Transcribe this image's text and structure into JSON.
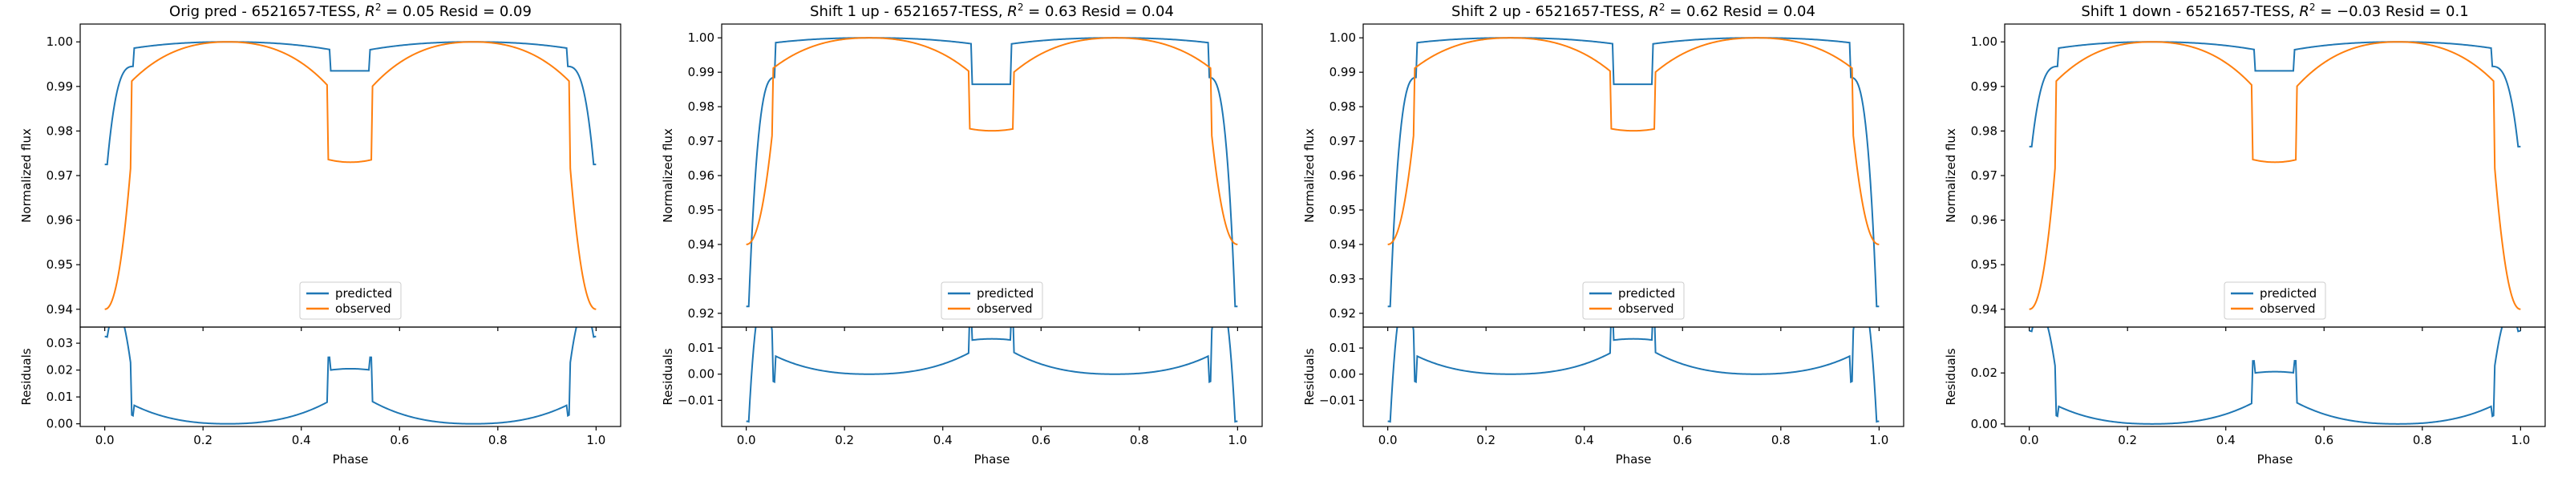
{
  "chart_data": [
    {
      "type": "line",
      "title": "Orig pred - 6521657-TESS, $R^2 = 0.05$ Resid = 0.09",
      "title_parts": {
        "prefix": "Orig pred - 6521657-TESS, ",
        "r2_value": "0.05",
        "suffix": " Resid = 0.09"
      },
      "ylabel": "Normalized flux",
      "ylim": [
        0.936,
        1.004
      ],
      "yticks": [
        "0.94",
        "0.95",
        "0.96",
        "0.97",
        "0.98",
        "0.99",
        "1.00"
      ],
      "predicted": {
        "edge": 0.9725,
        "shoulder": 0.9945,
        "center": 0.9935
      },
      "observed": {
        "edge": 0.94,
        "shoulder": 0.975,
        "center": 0.973
      },
      "residuals": {
        "ylabel": "Residuals",
        "ylim": [
          -0.001,
          0.036
        ],
        "yticks": [
          "0.00",
          "0.01",
          "0.02",
          "0.03"
        ]
      },
      "xlabel": "Phase",
      "xticks": [
        "0.0",
        "0.2",
        "0.4",
        "0.6",
        "0.8",
        "1.0"
      ]
    },
    {
      "type": "line",
      "title": "Shift 1 up - 6521657-TESS, $R^2 = 0.63$ Resid = 0.04",
      "title_parts": {
        "prefix": "Shift 1 up - 6521657-TESS, ",
        "r2_value": "0.63",
        "suffix": " Resid = 0.04"
      },
      "ylabel": "Normalized flux",
      "ylim": [
        0.916,
        1.004
      ],
      "yticks": [
        "0.92",
        "0.93",
        "0.94",
        "0.95",
        "0.96",
        "0.97",
        "0.98",
        "0.99",
        "1.00"
      ],
      "predicted": {
        "edge": 0.922,
        "shoulder": 0.9885,
        "center": 0.9865
      },
      "observed": {
        "edge": 0.94,
        "shoulder": 0.975,
        "center": 0.973
      },
      "residuals": {
        "ylabel": "Residuals",
        "ylim": [
          -0.02,
          0.018
        ],
        "yticks": [
          "−0.01",
          "0.00",
          "0.01"
        ]
      },
      "xlabel": "Phase",
      "xticks": [
        "0.0",
        "0.2",
        "0.4",
        "0.6",
        "0.8",
        "1.0"
      ]
    },
    {
      "type": "line",
      "title": "Shift 2 up - 6521657-TESS, $R^2 = 0.62$ Resid = 0.04",
      "title_parts": {
        "prefix": "Shift 2 up - 6521657-TESS, ",
        "r2_value": "0.62",
        "suffix": " Resid = 0.04"
      },
      "ylabel": "Normalized flux",
      "ylim": [
        0.916,
        1.004
      ],
      "yticks": [
        "0.92",
        "0.93",
        "0.94",
        "0.95",
        "0.96",
        "0.97",
        "0.98",
        "0.99",
        "1.00"
      ],
      "predicted": {
        "edge": 0.922,
        "shoulder": 0.9885,
        "center": 0.9865
      },
      "observed": {
        "edge": 0.94,
        "shoulder": 0.975,
        "center": 0.973
      },
      "residuals": {
        "ylabel": "Residuals",
        "ylim": [
          -0.02,
          0.018
        ],
        "yticks": [
          "−0.01",
          "0.00",
          "0.01"
        ]
      },
      "xlabel": "Phase",
      "xticks": [
        "0.0",
        "0.2",
        "0.4",
        "0.6",
        "0.8",
        "1.0"
      ]
    },
    {
      "type": "line",
      "title": "Shift 1 down - 6521657-TESS, $R^2 = -0.03$ Resid = 0.1",
      "title_parts": {
        "prefix": "Shift 1 down - 6521657-TESS, ",
        "r2_value": "−0.03",
        "suffix": " Resid = 0.1"
      },
      "ylabel": "Normalized flux",
      "ylim": [
        0.936,
        1.004
      ],
      "yticks": [
        "0.94",
        "0.95",
        "0.96",
        "0.97",
        "0.98",
        "0.99",
        "1.00"
      ],
      "predicted": {
        "edge": 0.9765,
        "shoulder": 0.9945,
        "center": 0.9935
      },
      "observed": {
        "edge": 0.94,
        "shoulder": 0.975,
        "center": 0.973
      },
      "residuals": {
        "ylabel": "Residuals",
        "ylim": [
          -0.001,
          0.038
        ],
        "yticks": [
          "0.00",
          "0.02"
        ]
      },
      "xlabel": "Phase",
      "xticks": [
        "0.0",
        "0.2",
        "0.4",
        "0.6",
        "0.8",
        "1.0"
      ]
    }
  ],
  "legend": {
    "predicted": "predicted",
    "observed": "observed",
    "placement": "lower-center"
  },
  "colors": {
    "predicted": "#1f77b4",
    "observed": "#ff7f0e"
  },
  "r2_symbol": "R",
  "r2_exponent": "2",
  "r2_equals": " = "
}
